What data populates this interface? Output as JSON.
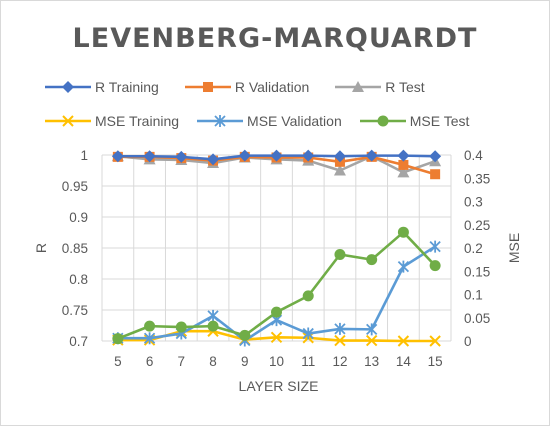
{
  "chart_data": {
    "type": "line",
    "title": "LEVENBERG-MARQUARDT",
    "xlabel": "LAYER SIZE",
    "ylabel_left": "R",
    "ylabel_right": "MSE",
    "categories": [
      "5",
      "6",
      "7",
      "8",
      "9",
      "10",
      "11",
      "12",
      "13",
      "14",
      "15"
    ],
    "y_left": {
      "ylim": [
        0.7,
        1.0
      ],
      "ticks": [
        "0.7",
        "0.75",
        "0.8",
        "0.85",
        "0.9",
        "0.95",
        "1"
      ]
    },
    "y_right": {
      "ylim": [
        0,
        0.4
      ],
      "ticks": [
        "0",
        "0.05",
        "0.1",
        "0.15",
        "0.2",
        "0.25",
        "0.3",
        "0.35",
        "0.4"
      ]
    },
    "grid": true,
    "legend_position": "top",
    "series": [
      {
        "name": "R Training",
        "axis": "left",
        "color": "#4472C4",
        "marker": "diamond",
        "values": [
          0.998,
          0.998,
          0.997,
          0.993,
          0.999,
          0.999,
          0.999,
          0.998,
          0.999,
          0.999,
          0.998
        ]
      },
      {
        "name": "R Validation",
        "axis": "left",
        "color": "#ED7D31",
        "marker": "square",
        "values": [
          0.997,
          0.997,
          0.995,
          0.991,
          0.997,
          0.996,
          0.996,
          0.989,
          0.997,
          0.984,
          0.969
        ]
      },
      {
        "name": "R Test",
        "axis": "left",
        "color": "#A5A5A5",
        "marker": "triangle",
        "values": [
          0.998,
          0.993,
          0.992,
          0.987,
          0.996,
          0.993,
          0.991,
          0.975,
          0.998,
          0.972,
          0.99
        ]
      },
      {
        "name": "MSE Training",
        "axis": "right",
        "color": "#FFC000",
        "marker": "x",
        "values": [
          0.002,
          0.002,
          0.021,
          0.021,
          0.003,
          0.008,
          0.007,
          0.001,
          0.001,
          0.0,
          0.0
        ]
      },
      {
        "name": "MSE Validation",
        "axis": "right",
        "color": "#5B9BD5",
        "marker": "star",
        "values": [
          0.006,
          0.006,
          0.016,
          0.054,
          0.001,
          0.045,
          0.016,
          0.026,
          0.025,
          0.16,
          0.203
        ]
      },
      {
        "name": "MSE Test",
        "axis": "right",
        "color": "#70AD47",
        "marker": "circle",
        "values": [
          0.005,
          0.032,
          0.03,
          0.032,
          0.012,
          0.062,
          0.097,
          0.186,
          0.175,
          0.234,
          0.162
        ]
      }
    ]
  }
}
